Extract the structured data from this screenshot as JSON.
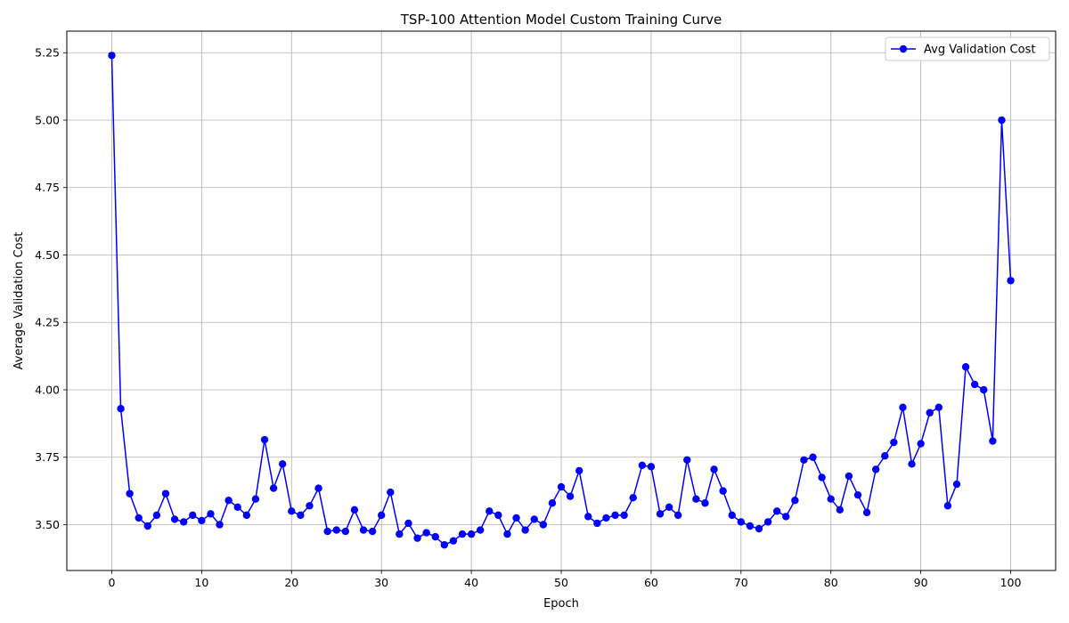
{
  "chart_data": {
    "type": "line",
    "title": "TSP-100 Attention Model Custom Training Curve",
    "xlabel": "Epoch",
    "ylabel": "Average Validation Cost",
    "xlim": [
      -5,
      105
    ],
    "ylim": [
      3.33,
      5.33
    ],
    "xticks": [
      0,
      10,
      20,
      30,
      40,
      50,
      60,
      70,
      80,
      90,
      100
    ],
    "yticks": [
      3.5,
      3.75,
      4.0,
      4.25,
      4.5,
      4.75,
      5.0,
      5.25
    ],
    "ytick_labels": [
      "3.50",
      "3.75",
      "4.00",
      "4.25",
      "4.50",
      "4.75",
      "5.00",
      "5.25"
    ],
    "grid": true,
    "legend_position": "top-right",
    "series": [
      {
        "name": "Avg Validation Cost",
        "color": "#0000ff",
        "marker": "circle",
        "x": [
          0,
          1,
          2,
          3,
          4,
          5,
          6,
          7,
          8,
          9,
          10,
          11,
          12,
          13,
          14,
          15,
          16,
          17,
          18,
          19,
          20,
          21,
          22,
          23,
          24,
          25,
          26,
          27,
          28,
          29,
          30,
          31,
          32,
          33,
          34,
          35,
          36,
          37,
          38,
          39,
          40,
          41,
          42,
          43,
          44,
          45,
          46,
          47,
          48,
          49,
          50,
          51,
          52,
          53,
          54,
          55,
          56,
          57,
          58,
          59,
          60,
          61,
          62,
          63,
          64,
          65,
          66,
          67,
          68,
          69,
          70,
          71,
          72,
          73,
          74,
          75,
          76,
          77,
          78,
          79,
          80,
          81,
          82,
          83,
          84,
          85,
          86,
          87,
          88,
          89,
          90,
          91,
          92,
          93,
          94,
          95,
          96,
          97,
          98,
          99,
          100
        ],
        "values": [
          5.24,
          3.93,
          3.615,
          3.525,
          3.495,
          3.535,
          3.615,
          3.52,
          3.51,
          3.535,
          3.515,
          3.54,
          3.5,
          3.59,
          3.565,
          3.535,
          3.595,
          3.815,
          3.635,
          3.725,
          3.55,
          3.535,
          3.57,
          3.635,
          3.475,
          3.48,
          3.475,
          3.555,
          3.48,
          3.475,
          3.535,
          3.62,
          3.465,
          3.505,
          3.45,
          3.47,
          3.455,
          3.425,
          3.44,
          3.465,
          3.465,
          3.48,
          3.55,
          3.535,
          3.465,
          3.525,
          3.48,
          3.52,
          3.5,
          3.58,
          3.64,
          3.605,
          3.7,
          3.53,
          3.505,
          3.525,
          3.535,
          3.535,
          3.6,
          3.72,
          3.715,
          3.54,
          3.565,
          3.535,
          3.74,
          3.595,
          3.58,
          3.705,
          3.625,
          3.535,
          3.51,
          3.495,
          3.485,
          3.51,
          3.55,
          3.53,
          3.59,
          3.74,
          3.75,
          3.675,
          3.595,
          3.555,
          3.68,
          3.61,
          3.545,
          3.705,
          3.755,
          3.805,
          3.935,
          3.725,
          3.8,
          3.915,
          3.935,
          3.57,
          3.65,
          4.085,
          4.02,
          4.0,
          3.81,
          5.0,
          4.405
        ]
      }
    ]
  }
}
